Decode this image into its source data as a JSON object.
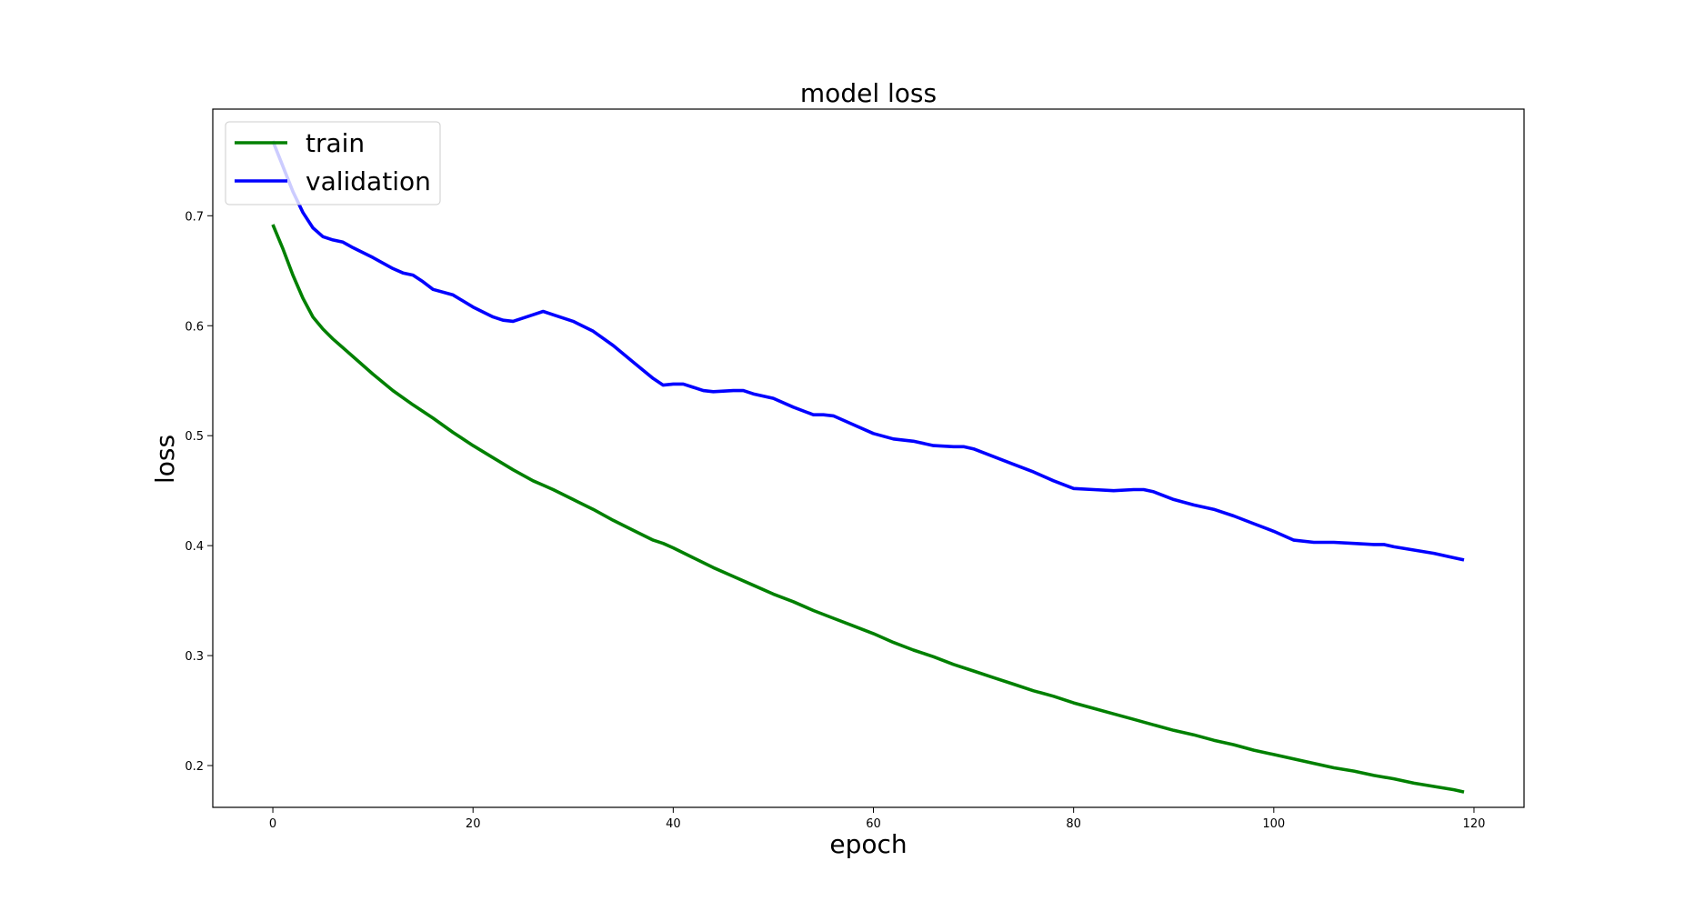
{
  "chart_data": {
    "type": "line",
    "title": "model loss",
    "xlabel": "epoch",
    "ylabel": "loss",
    "xlim": [
      -6,
      125
    ],
    "ylim": [
      0.162,
      0.797
    ],
    "xticks": [
      0,
      20,
      40,
      60,
      80,
      100,
      120
    ],
    "yticks": [
      0.2,
      0.3,
      0.4,
      0.5,
      0.6,
      0.7
    ],
    "grid": false,
    "legend_position": "upper left",
    "series": [
      {
        "name": "train",
        "color": "#008000",
        "x": [
          0,
          1,
          2,
          3,
          4,
          5,
          6,
          8,
          10,
          12,
          14,
          16,
          18,
          20,
          22,
          24,
          26,
          27,
          28,
          30,
          32,
          34,
          36,
          38,
          39,
          40,
          42,
          44,
          46,
          48,
          50,
          52,
          54,
          56,
          58,
          60,
          62,
          64,
          66,
          68,
          70,
          72,
          74,
          76,
          78,
          80,
          82,
          84,
          86,
          88,
          90,
          92,
          94,
          96,
          98,
          100,
          102,
          104,
          106,
          108,
          110,
          112,
          114,
          116,
          118,
          119
        ],
        "values": [
          0.692,
          0.67,
          0.646,
          0.625,
          0.608,
          0.597,
          0.588,
          0.572,
          0.556,
          0.541,
          0.528,
          0.516,
          0.503,
          0.491,
          0.48,
          0.469,
          0.459,
          0.455,
          0.451,
          0.442,
          0.433,
          0.423,
          0.414,
          0.405,
          0.402,
          0.398,
          0.389,
          0.38,
          0.372,
          0.364,
          0.356,
          0.349,
          0.341,
          0.334,
          0.327,
          0.32,
          0.312,
          0.305,
          0.299,
          0.292,
          0.286,
          0.28,
          0.274,
          0.268,
          0.263,
          0.257,
          0.252,
          0.247,
          0.242,
          0.237,
          0.232,
          0.228,
          0.223,
          0.219,
          0.214,
          0.21,
          0.206,
          0.202,
          0.198,
          0.195,
          0.191,
          0.188,
          0.184,
          0.181,
          0.178,
          0.176
        ]
      },
      {
        "name": "validation",
        "color": "#0000ff",
        "x": [
          0,
          1,
          2,
          3,
          4,
          5,
          6,
          7,
          8,
          10,
          12,
          13,
          14,
          15,
          16,
          18,
          20,
          22,
          23,
          24,
          25,
          26,
          27,
          28,
          30,
          32,
          34,
          36,
          38,
          39,
          40,
          41,
          42,
          43,
          44,
          46,
          47,
          48,
          50,
          52,
          54,
          55,
          56,
          58,
          60,
          62,
          64,
          66,
          68,
          69,
          70,
          72,
          74,
          76,
          78,
          80,
          82,
          84,
          86,
          87,
          88,
          90,
          92,
          94,
          96,
          98,
          100,
          102,
          104,
          106,
          108,
          110,
          111,
          112,
          114,
          116,
          118,
          119
        ],
        "values": [
          0.768,
          0.745,
          0.722,
          0.703,
          0.689,
          0.681,
          0.678,
          0.676,
          0.671,
          0.662,
          0.652,
          0.648,
          0.646,
          0.64,
          0.633,
          0.628,
          0.617,
          0.608,
          0.605,
          0.604,
          0.607,
          0.61,
          0.613,
          0.61,
          0.604,
          0.595,
          0.582,
          0.567,
          0.552,
          0.546,
          0.547,
          0.547,
          0.544,
          0.541,
          0.54,
          0.541,
          0.541,
          0.538,
          0.534,
          0.526,
          0.519,
          0.519,
          0.518,
          0.51,
          0.502,
          0.497,
          0.495,
          0.491,
          0.49,
          0.49,
          0.488,
          0.481,
          0.474,
          0.467,
          0.459,
          0.452,
          0.451,
          0.45,
          0.451,
          0.451,
          0.449,
          0.442,
          0.437,
          0.433,
          0.427,
          0.42,
          0.413,
          0.405,
          0.403,
          0.403,
          0.402,
          0.401,
          0.401,
          0.399,
          0.396,
          0.393,
          0.389,
          0.387
        ]
      }
    ]
  }
}
